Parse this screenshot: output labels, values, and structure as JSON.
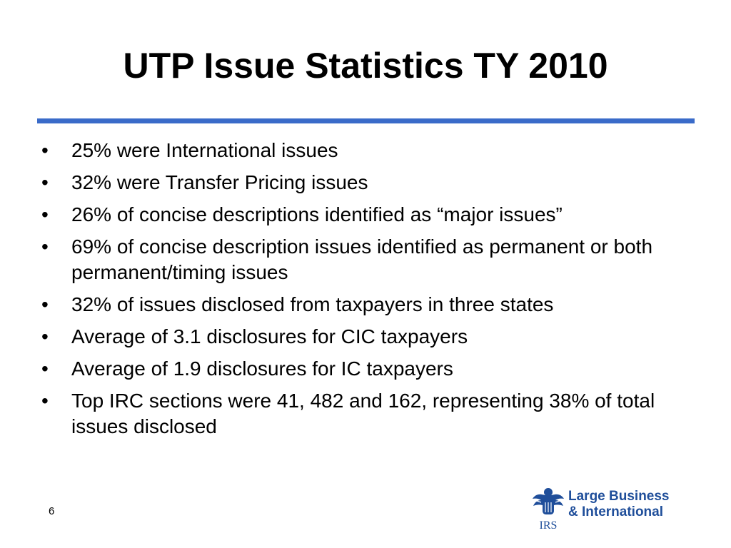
{
  "slide": {
    "title": "UTP Issue Statistics TY 2010",
    "bullet_symbol": "•",
    "bullets": [
      "25% were International issues",
      "32% were Transfer Pricing issues",
      "26% of concise descriptions identified as “major issues”",
      "69% of concise description issues identified as permanent or both permanent/timing issues",
      "32% of issues disclosed from taxpayers in three states",
      "Average of 3.1 disclosures for CIC taxpayers",
      "Average of 1.9 disclosures for IC taxpayers",
      "Top IRC sections were 41, 482 and 162, representing 38% of total issues disclosed"
    ],
    "page_number": "6"
  },
  "logo": {
    "seal_text": "IRS",
    "line1": "Large Business",
    "line2": "& International",
    "color": "#1f4e9a"
  },
  "colors": {
    "rule": "#3a6bc9",
    "text": "#000000",
    "background": "#ffffff"
  }
}
